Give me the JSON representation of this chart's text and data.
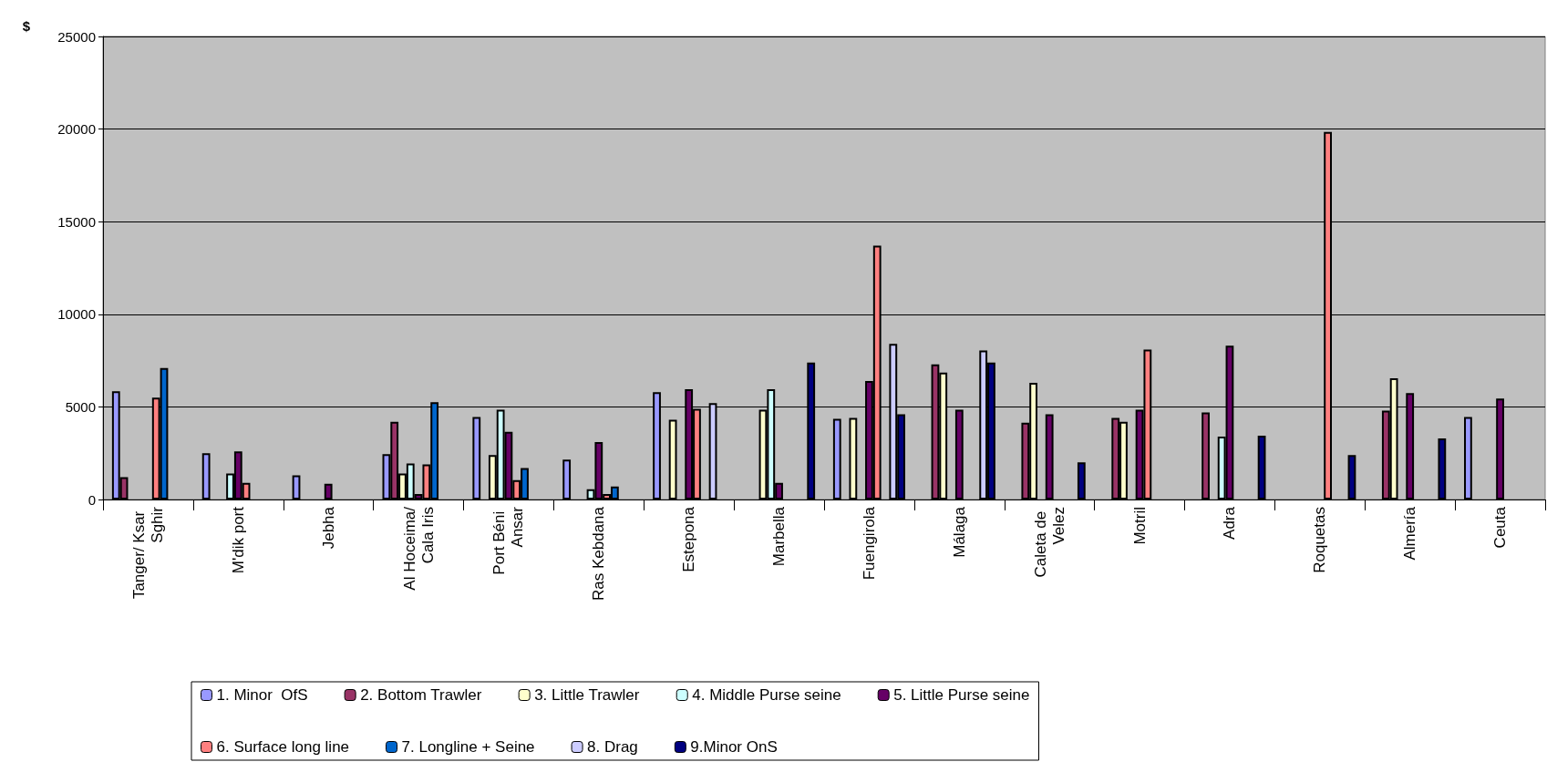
{
  "chart_data": {
    "type": "bar",
    "ylabel": "$",
    "categories": [
      "Tanger/ Ksar Sghir",
      "M'dik port",
      "Jebha",
      "Al Hoceima/Cala Iris",
      "Port Béni Ansar",
      "Ras Kebdana",
      "Estepona",
      "Marbella",
      "Fuengirola",
      "Málaga",
      "Caleta de Velez",
      "Motril",
      "Adra",
      "Roquetas",
      "Almería",
      "Ceuta"
    ],
    "series": [
      {
        "name": "1. Minor  OfS",
        "color": "#9999ff",
        "values": [
          5850,
          2500,
          1300,
          2450,
          4450,
          2150,
          5800,
          null,
          4350,
          null,
          null,
          null,
          null,
          null,
          null,
          4450
        ]
      },
      {
        "name": "2. Bottom Trawler",
        "color": "#993366",
        "values": [
          1200,
          null,
          null,
          4200,
          null,
          null,
          null,
          null,
          null,
          7300,
          4150,
          4400,
          4700,
          null,
          4800,
          null
        ]
      },
      {
        "name": "3. Little Trawler",
        "color": "#ffffcc",
        "values": [
          null,
          null,
          null,
          1400,
          2400,
          null,
          4300,
          4850,
          4400,
          6850,
          6300,
          4200,
          null,
          null,
          6550,
          null
        ]
      },
      {
        "name": "4. Middle Purse seine",
        "color": "#ccffff",
        "values": [
          null,
          1400,
          null,
          1950,
          4850,
          550,
          null,
          5950,
          null,
          null,
          null,
          null,
          3400,
          null,
          null,
          null
        ]
      },
      {
        "name": "5. Little Purse seine",
        "color": "#660066",
        "values": [
          null,
          2600,
          850,
          300,
          3650,
          3100,
          5950,
          900,
          6400,
          4850,
          4600,
          4850,
          8300,
          null,
          5750,
          5450
        ]
      },
      {
        "name": "6. Surface long line",
        "color": "#ff8080",
        "values": [
          5500,
          900,
          null,
          1900,
          1050,
          300,
          4900,
          null,
          13700,
          null,
          null,
          8100,
          null,
          19850,
          null,
          null
        ]
      },
      {
        "name": "7. Longline + Seine",
        "color": "#0066cc",
        "values": [
          7100,
          null,
          null,
          5250,
          1700,
          700,
          null,
          null,
          null,
          null,
          null,
          null,
          null,
          null,
          null,
          null
        ]
      },
      {
        "name": "8. Drag",
        "color": "#ccccff",
        "values": [
          null,
          null,
          null,
          null,
          null,
          null,
          5200,
          null,
          8400,
          8050,
          null,
          null,
          null,
          null,
          null,
          null
        ]
      },
      {
        "name": "9.Minor OnS",
        "color": "#000080",
        "values": [
          null,
          null,
          null,
          null,
          null,
          null,
          null,
          7400,
          4600,
          7400,
          2000,
          null,
          3450,
          2400,
          3300,
          null
        ]
      }
    ],
    "ylim": [
      0,
      25000
    ],
    "yticks": [
      0,
      5000,
      10000,
      15000,
      20000,
      25000
    ],
    "grid": "y",
    "legend": "bottom"
  }
}
